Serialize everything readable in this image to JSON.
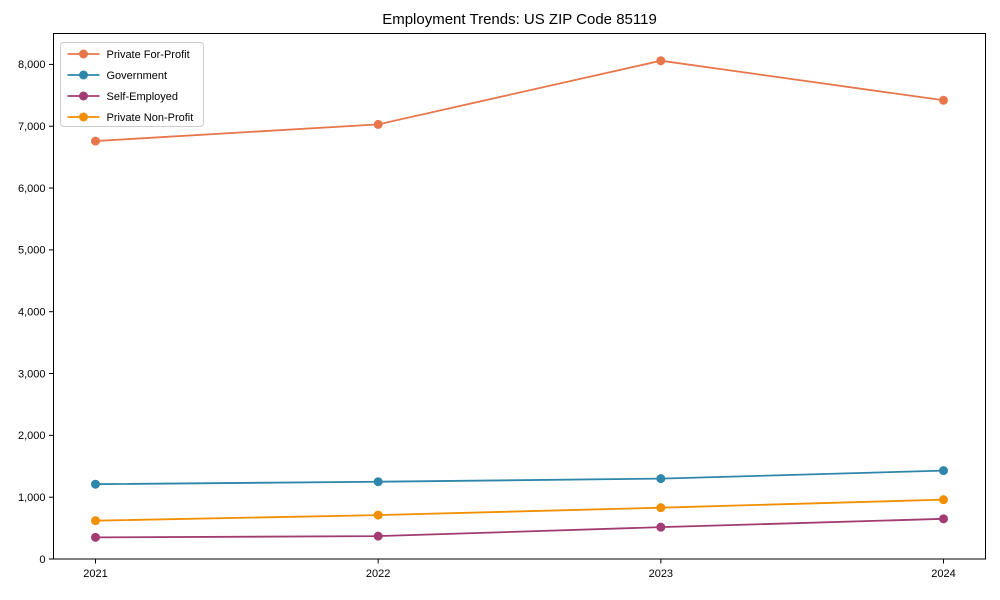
{
  "chart_data": {
    "type": "line",
    "title": "Employment Trends: US ZIP Code 85119",
    "xlabel": "",
    "ylabel": "",
    "categories": [
      "2021",
      "2022",
      "2023",
      "2024"
    ],
    "series": [
      {
        "name": "Private For-Profit",
        "color": "#E8764B",
        "values": [
          6760,
          7030,
          8060,
          7420
        ]
      },
      {
        "name": "Government",
        "color": "#2E86AB",
        "values": [
          1210,
          1250,
          1300,
          1430
        ]
      },
      {
        "name": "Self-Employed",
        "color": "#A23B72",
        "values": [
          350,
          370,
          515,
          650
        ]
      },
      {
        "name": "Private Non-Profit",
        "color": "#F18F01",
        "values": [
          620,
          710,
          830,
          960
        ]
      }
    ],
    "ylim": [
      0,
      8500
    ],
    "yticks": [
      {
        "v": 0,
        "label": "0"
      },
      {
        "v": 1000,
        "label": "1,000"
      },
      {
        "v": 2000,
        "label": "2,000"
      },
      {
        "v": 3000,
        "label": "3,000"
      },
      {
        "v": 4000,
        "label": "4,000"
      },
      {
        "v": 5000,
        "label": "5,000"
      },
      {
        "v": 6000,
        "label": "6,000"
      },
      {
        "v": 7000,
        "label": "7,000"
      },
      {
        "v": 8000,
        "label": "8,000"
      }
    ],
    "grid": false,
    "legend_position": "upper left",
    "frame_color": "#000000",
    "legend_border_color": "#cccccc"
  }
}
